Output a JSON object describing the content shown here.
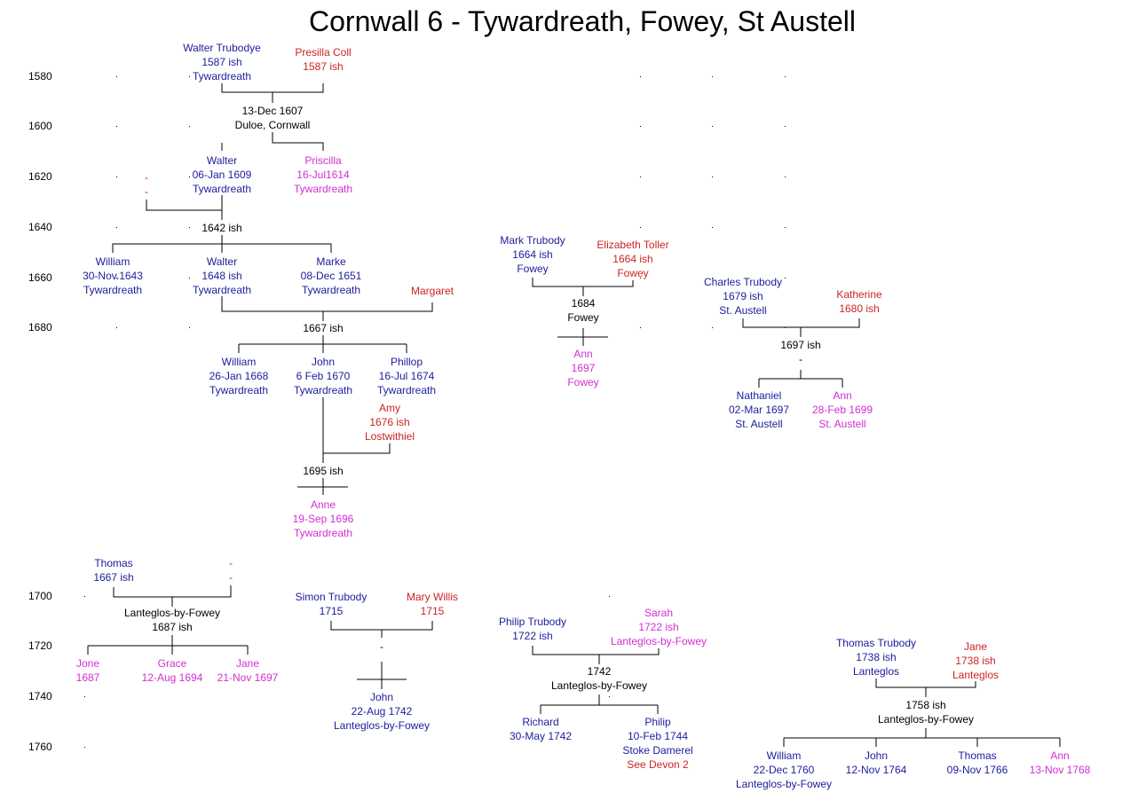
{
  "title": "Cornwall 6 - Tywardreath, Fowey, St Austell",
  "years": [
    "1580",
    "1600",
    "1620",
    "1640",
    "1660",
    "1680",
    "1700",
    "1720",
    "1740",
    "1760"
  ],
  "colors": {
    "male": "#1c1c9c",
    "wife": "#cc2323",
    "daughter": "#d12fd1",
    "event": "#000000",
    "line": "#000000"
  },
  "people": {
    "walter_sr": [
      "Walter Trubodye",
      "1587 ish",
      "Tywardreath"
    ],
    "presilla": [
      "Presilla Coll",
      "1587 ish"
    ],
    "m1607": [
      "13-Dec 1607",
      "Duloe, Cornwall"
    ],
    "walter_1609": [
      "Walter",
      "06-Jan 1609",
      "Tywardreath"
    ],
    "priscilla": [
      "Priscilla",
      "16-Jul1614",
      "Tywardreath"
    ],
    "dash_wife_1620": [
      "-",
      "-"
    ],
    "m1642": [
      "1642 ish"
    ],
    "william_1643": [
      "William",
      "30-Nov.1643",
      "Tywardreath"
    ],
    "walter_1648": [
      "Walter",
      "1648 ish",
      "Tywardreath"
    ],
    "marke": [
      "Marke",
      "08-Dec 1651",
      "Tywardreath"
    ],
    "margaret": [
      "Margaret"
    ],
    "m1667": [
      "1667 ish"
    ],
    "william_1668": [
      "William",
      "26-Jan 1668",
      "Tywardreath"
    ],
    "john_1670": [
      "John",
      "6 Feb 1670",
      "Tywardreath"
    ],
    "phillop": [
      "Phillop",
      "16-Jul 1674",
      "Tywardreath"
    ],
    "amy": [
      "Amy",
      "1676 ish",
      "Lostwithiel"
    ],
    "m1695": [
      "1695 ish"
    ],
    "anne_1696": [
      "Anne",
      "19-Sep 1696",
      "Tywardreath"
    ],
    "mark": [
      "Mark Trubody",
      "1664 ish",
      "Fowey"
    ],
    "elizabeth": [
      "Elizabeth Toller",
      "1664 ish",
      "Fowey"
    ],
    "m1684": [
      "1684",
      "Fowey"
    ],
    "ann_1697": [
      "Ann",
      "1697",
      "Fowey"
    ],
    "charles": [
      "Charles Trubody",
      "1679 ish",
      "St. Austell"
    ],
    "katherine": [
      "Katherine",
      "1680 ish"
    ],
    "m1697": [
      "1697 ish",
      "-"
    ],
    "nathaniel": [
      "Nathaniel",
      "02-Mar 1697",
      "St. Austell"
    ],
    "ann_1699": [
      "Ann",
      "28-Feb 1699",
      "St. Austell"
    ],
    "thomas_1667": [
      "Thomas",
      "1667 ish"
    ],
    "dash_wife_1700": [
      "-",
      "-"
    ],
    "m1687": [
      "Lanteglos-by-Fowey",
      "1687 ish"
    ],
    "jone": [
      "Jone",
      "1687"
    ],
    "grace": [
      "Grace",
      "12-Aug 1694"
    ],
    "jane_1697": [
      "Jane",
      "21-Nov 1697"
    ],
    "simon": [
      "Simon Trubody",
      "1715"
    ],
    "mary": [
      "Mary Willis",
      "1715"
    ],
    "m_simon": [
      "-"
    ],
    "john_1742": [
      "John",
      "22-Aug 1742",
      "Lanteglos-by-Fowey"
    ],
    "philip_1722": [
      "Philip Trubody",
      "1722 ish"
    ],
    "sarah": [
      "Sarah",
      "1722 ish",
      "Lanteglos-by-Fowey"
    ],
    "m1742": [
      "1742",
      "Lanteglos-by-Fowey"
    ],
    "richard": [
      "Richard",
      "30-May 1742"
    ],
    "philip_1744": [
      "Philip",
      "10-Feb 1744",
      "Stoke Damerel"
    ],
    "see_devon": [
      "See Devon 2"
    ],
    "thomas_1738": [
      "Thomas Trubody",
      "1738 ish",
      "Lanteglos"
    ],
    "jane_1738": [
      "Jane",
      "1738 ish",
      "Lanteglos"
    ],
    "m1758": [
      "1758 ish",
      "Lanteglos-by-Fowey"
    ],
    "william_1760": [
      "William",
      "22-Dec 1760",
      "Lanteglos-by-Fowey"
    ],
    "john_1764": [
      "John",
      "12-Nov 1764"
    ],
    "thomas_1766": [
      "Thomas",
      "09-Nov 1766"
    ],
    "ann_1768": [
      "Ann",
      "13-Nov 1768"
    ]
  }
}
